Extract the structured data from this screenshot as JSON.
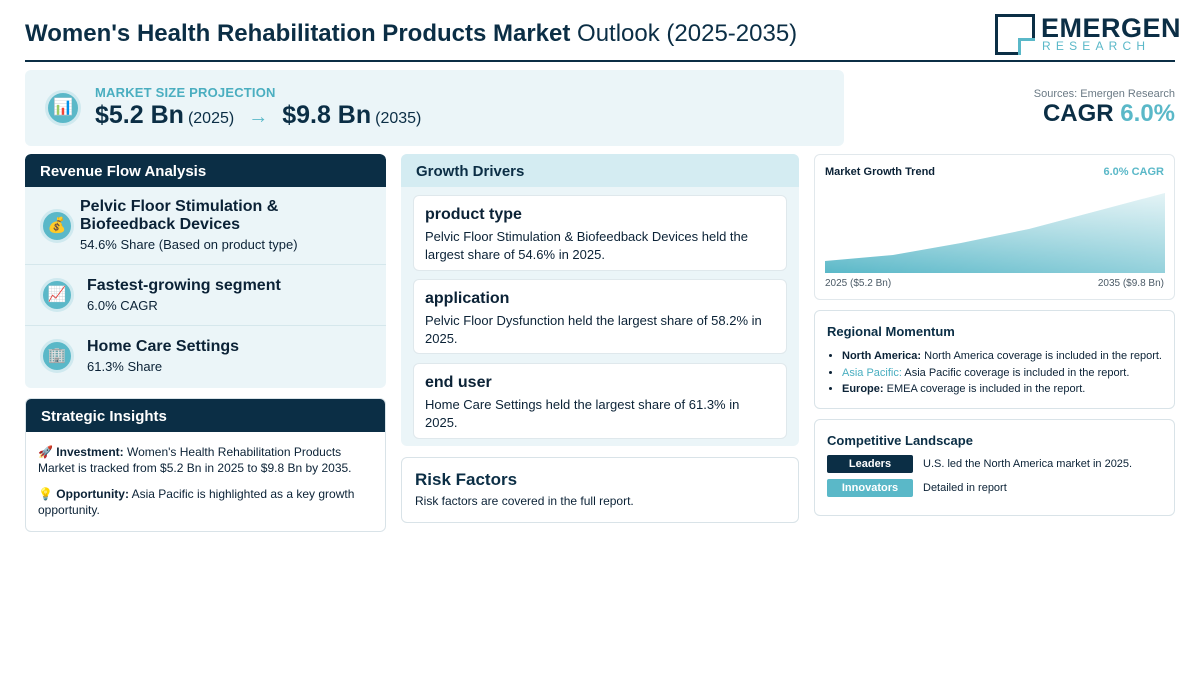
{
  "header": {
    "title_bold": "Women's Health Rehabilitation Products Market",
    "title_rest": "Outlook (2025-2035)",
    "logo_top": "EMERGEN",
    "logo_bottom": "RESEARCH"
  },
  "market": {
    "label": "MARKET SIZE PROJECTION",
    "icon": "bar-chart-icon",
    "start_value": "$5.2 Bn",
    "start_year": "(2025)",
    "arrow": "→",
    "end_value": "$9.8 Bn",
    "end_year": "(2035)"
  },
  "sources": "Sources: Emergen Research",
  "cagr": {
    "label": "CAGR",
    "value": "6.0%"
  },
  "revenue_flow": {
    "title": "Revenue Flow Analysis",
    "items": [
      {
        "icon": "money-bag-icon",
        "glyph": "💰",
        "title": "Pelvic Floor Stimulation & Biofeedback Devices",
        "subtitle": "54.6% Share (Based on product type)"
      },
      {
        "icon": "trend-up-icon",
        "glyph": "📈",
        "title": "Fastest-growing segment",
        "subtitle": "6.0% CAGR"
      },
      {
        "icon": "building-icon",
        "glyph": "🏢",
        "title": "Home Care Settings",
        "subtitle": "61.3% Share"
      }
    ]
  },
  "strategic": {
    "title": "Strategic Insights",
    "investment_label": "Investment:",
    "investment_text": "Women's Health Rehabilitation Products Market is tracked from $5.2 Bn in 2025 to $9.8 Bn by 2035.",
    "opportunity_label": "Opportunity:",
    "opportunity_text": "Asia Pacific is highlighted as a key growth opportunity."
  },
  "drivers": {
    "title": "Growth Drivers",
    "cards": [
      {
        "title": "product type",
        "text": "Pelvic Floor Stimulation & Biofeedback Devices held the largest share of 54.6% in 2025."
      },
      {
        "title": "application",
        "text": "Pelvic Floor Dysfunction held the largest share of 58.2% in 2025."
      },
      {
        "title": "end user",
        "text": "Home Care Settings held the largest share of 61.3% in 2025."
      }
    ]
  },
  "risk": {
    "title": "Risk Factors",
    "text": "Risk factors are covered in the full report."
  },
  "trend": {
    "title": "Market Growth Trend",
    "cagr_label": "6.0% CAGR",
    "left_label": "2025 ($5.2 Bn)",
    "right_label": "2035 ($9.8 Bn)"
  },
  "regional": {
    "title": "Regional Momentum",
    "items": [
      {
        "name": "North America:",
        "text": "North America coverage is included in the report."
      },
      {
        "name": "Asia Pacific:",
        "text": "Asia Pacific coverage is included in the report."
      },
      {
        "name": "Europe:",
        "text": "EMEA coverage is included in the report."
      }
    ]
  },
  "competitive": {
    "title": "Competitive Landscape",
    "rows": [
      {
        "badge": "Leaders",
        "text": "U.S. led the North America market in 2025."
      },
      {
        "badge": "Innovators",
        "text": "Detailed in report"
      }
    ]
  },
  "colors": {
    "navy": "#0b2e45",
    "teal": "#5ab8c8",
    "panel_bg": "#ebf5f8"
  }
}
